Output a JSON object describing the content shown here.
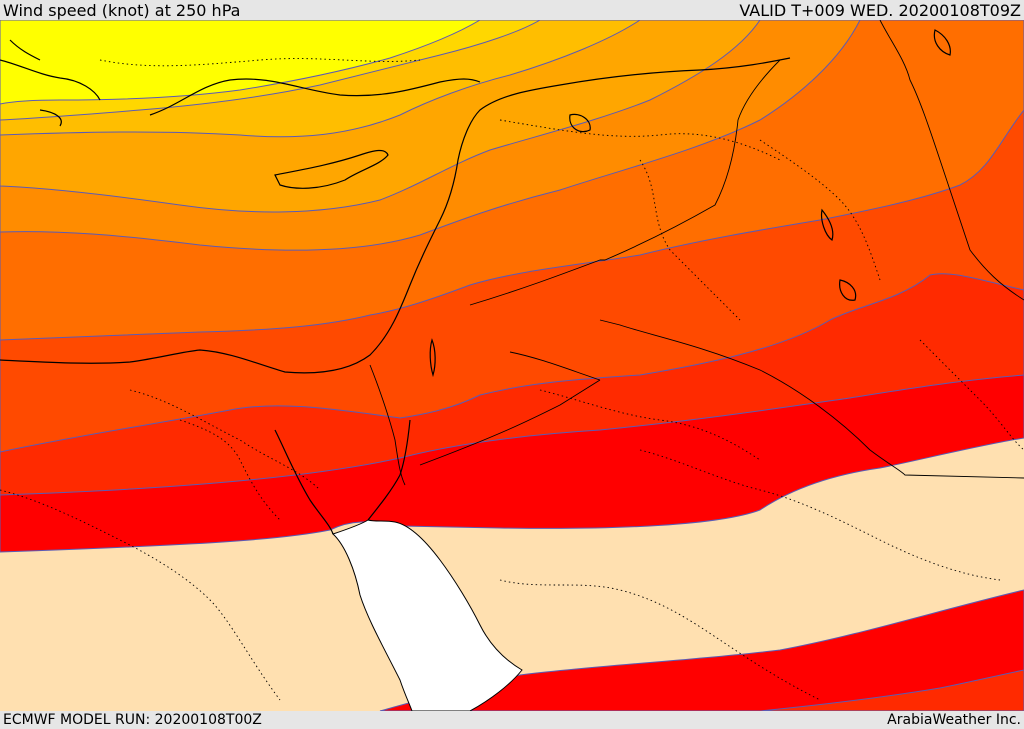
{
  "header": {
    "title": "Wind speed (knot) at 250 hPa",
    "valid": "VALID T+009 WED. 20200108T09Z"
  },
  "footer": {
    "model_run": "ECMWF MODEL RUN: 20200108T00Z",
    "credit": "ArabiaWeather Inc."
  },
  "map": {
    "field": "wind-speed-250hPa",
    "band_colors": [
      "#ffff00",
      "#ffd700",
      "#ffbe00",
      "#ffa600",
      "#ff8c00",
      "#ff6e00",
      "#ff4a00",
      "#ff2a00",
      "#ff0000",
      "#ffe0b0",
      "#ffffff"
    ],
    "contour_color": "#5b5bb5",
    "coastline_color": "#000000"
  }
}
